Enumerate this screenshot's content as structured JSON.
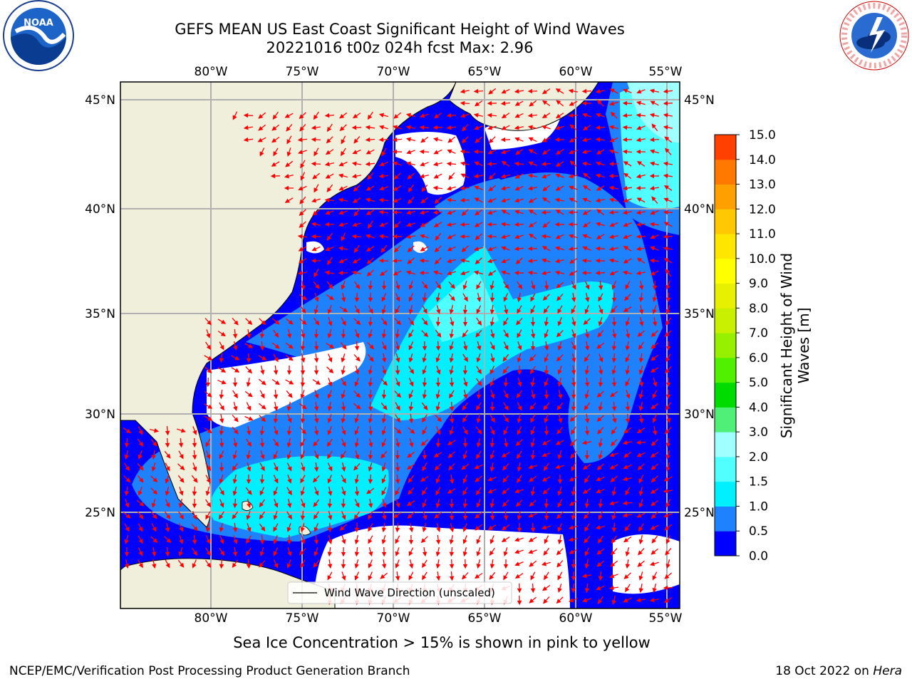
{
  "header": {
    "title_line1": "GEFS MEAN US East Coast Significant Height of Wind Waves",
    "title_line2": "20221016 t00z 024h fcst   Max: 2.96"
  },
  "logos": {
    "left": {
      "name": "noaa-logo",
      "text": "NOAA"
    },
    "right": {
      "name": "nws-logo",
      "text": "NATIONAL WEATHER SERVICE"
    }
  },
  "map": {
    "lon_labels": [
      "80°W",
      "75°W",
      "70°W",
      "65°W",
      "60°W",
      "55°W"
    ],
    "lat_labels": [
      "45°N",
      "40°N",
      "35°N",
      "30°N",
      "25°N"
    ],
    "land_color": "#efefdc",
    "legend_label": "Wind Wave Direction (unscaled)",
    "arrow_color": "#ff0000"
  },
  "colorbar": {
    "title_line1": "Significant Height of Wind",
    "title_line2": "Waves [m]",
    "tick_labels": [
      "0.0",
      "0.5",
      "1.0",
      "1.5",
      "2.0",
      "3.0",
      "4.0",
      "5.0",
      "6.0",
      "7.0",
      "8.0",
      "9.0",
      "10.0",
      "11.0",
      "12.0",
      "13.0",
      "14.0",
      "15.0"
    ],
    "colors": [
      "#0000ff",
      "#1e82ff",
      "#00f0ff",
      "#50ffff",
      "#a0ffff",
      "#50f078",
      "#00dc00",
      "#50f000",
      "#96f000",
      "#c8f000",
      "#e6f000",
      "#ffff00",
      "#ffe600",
      "#ffc800",
      "#ffa000",
      "#ff7800",
      "#ff4000",
      "#ff0000"
    ]
  },
  "caption": "Sea Ice Concentration > 15% is shown in pink to yellow",
  "footer": {
    "left": "NCEP/EMC/Verification Post Processing Product Generation Branch",
    "right_date": "18 Oct 2022 on",
    "right_host": "Hera"
  }
}
